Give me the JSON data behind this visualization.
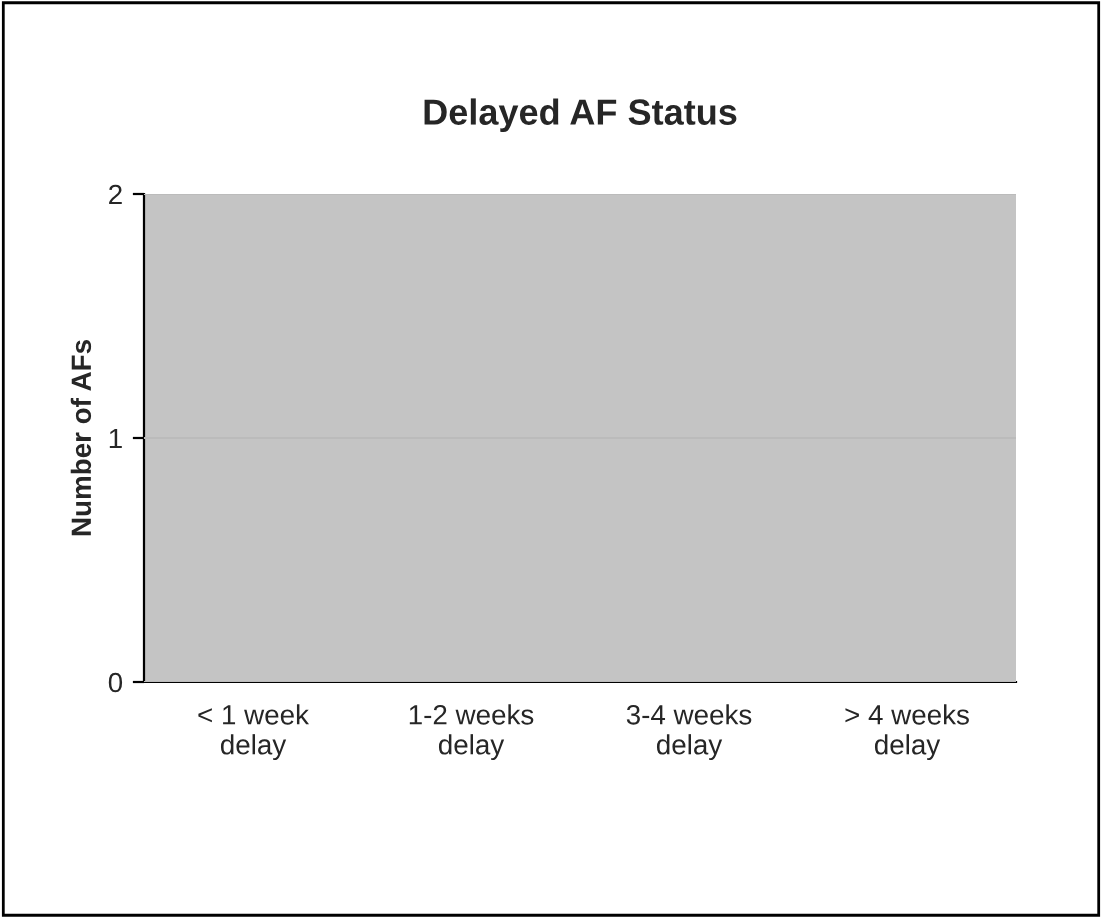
{
  "chart_data": {
    "type": "bar",
    "title": "Delayed AF Status",
    "ylabel": "Number of AFs",
    "categories": [
      "< 1 week delay",
      "1-2 weeks delay",
      "3-4 weeks delay",
      "> 4 weeks delay"
    ],
    "values": [
      0,
      0,
      0,
      0
    ],
    "ylim": [
      0,
      2
    ],
    "yticks": [
      0,
      1,
      2
    ],
    "grid": "y",
    "legend": false
  }
}
